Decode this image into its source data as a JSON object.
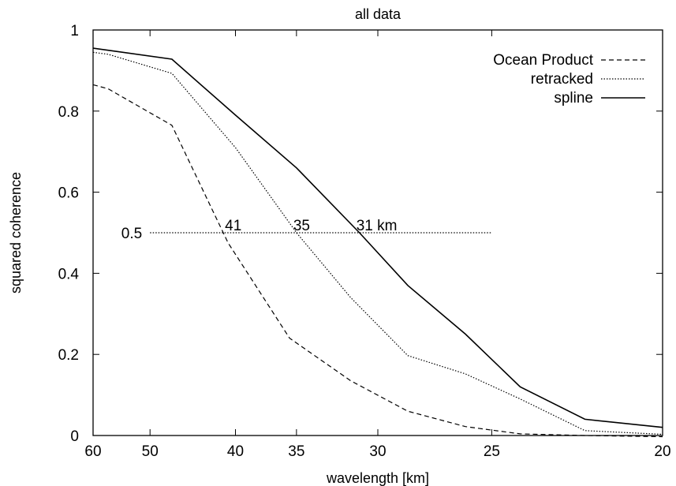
{
  "chart_data": {
    "type": "line",
    "title": "all data",
    "xlabel": "wavelength [km]",
    "ylabel": "squared coherence",
    "x_ticks": [
      "60",
      "50",
      "40",
      "35",
      "30",
      "25",
      "20"
    ],
    "y_ticks": [
      "0",
      "0.2",
      "0.4",
      "0.6",
      "0.8",
      "1"
    ],
    "xlim_reversed": [
      60,
      20
    ],
    "x_axis_scale": "reciprocal (wavenumber-linear)",
    "ylim": [
      0,
      1
    ],
    "grid": false,
    "legend_position": "top-right",
    "series": [
      {
        "name": "Ocean Product",
        "style": "dashed",
        "x": [
          60,
          57,
          47,
          40.7,
          35.5,
          31.5,
          28.5,
          26,
          24,
          22,
          20
        ],
        "y": [
          0.865,
          0.855,
          0.765,
          0.475,
          0.24,
          0.135,
          0.06,
          0.022,
          0.004,
          0.0,
          -0.003
        ]
      },
      {
        "name": "retracked",
        "style": "dotted",
        "x": [
          60,
          57,
          47,
          40,
          35,
          31.5,
          28.5,
          26,
          24,
          22,
          20
        ],
        "y": [
          0.945,
          0.94,
          0.893,
          0.71,
          0.5,
          0.34,
          0.197,
          0.152,
          0.09,
          0.012,
          0.003
        ]
      },
      {
        "name": "spline",
        "style": "solid",
        "x": [
          60,
          57,
          47,
          40,
          35,
          31,
          28.5,
          26,
          24,
          22,
          20
        ],
        "y": [
          0.955,
          0.95,
          0.928,
          0.79,
          0.66,
          0.5,
          0.37,
          0.25,
          0.12,
          0.04,
          0.02
        ]
      }
    ],
    "reference_line": {
      "label": "0.5",
      "y": 0.5,
      "x_from": 50,
      "x_to": 25,
      "style": "dotted"
    },
    "crossing_annotations": [
      {
        "text": "41",
        "x": 40.7,
        "y": 0.5
      },
      {
        "text": "35",
        "x": 35,
        "y": 0.5
      },
      {
        "text": "31 km",
        "x": 31,
        "y": 0.5
      }
    ]
  }
}
